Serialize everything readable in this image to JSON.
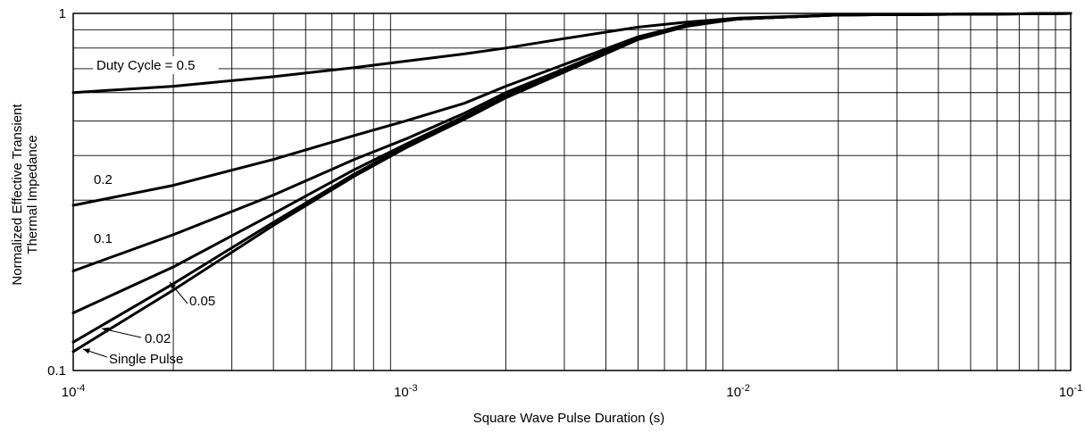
{
  "chart_data": {
    "type": "line",
    "title": "",
    "xlabel": "Square Wave Pulse Duration (s)",
    "ylabel": "Normalized Effective Transient Thermal Impedance",
    "ylabel_lines": [
      "Normalized Effective Transient",
      "Thermal Impedance"
    ],
    "x_scale": "log",
    "y_scale": "log",
    "xlim": [
      0.0001,
      0.1
    ],
    "ylim": [
      0.1,
      1
    ],
    "grid": true,
    "x_ticks": [
      {
        "base": "10",
        "exp": "-4"
      },
      {
        "base": "10",
        "exp": "-3"
      },
      {
        "base": "10",
        "exp": "-2"
      },
      {
        "base": "10",
        "exp": "-1"
      }
    ],
    "y_ticks": [
      "1",
      "0.1"
    ],
    "series": [
      {
        "name": "Duty Cycle = 0.5",
        "x": [
          0.0001,
          0.0002,
          0.0004,
          0.0007,
          0.001,
          0.0015,
          0.002,
          0.003,
          0.005,
          0.007,
          0.01,
          0.02,
          0.05,
          0.1
        ],
        "y": [
          0.6,
          0.625,
          0.665,
          0.705,
          0.735,
          0.77,
          0.8,
          0.85,
          0.915,
          0.945,
          0.97,
          0.99,
          0.995,
          1.0
        ]
      },
      {
        "name": "0.2",
        "x": [
          0.0001,
          0.0002,
          0.0004,
          0.0007,
          0.001,
          0.0015,
          0.002,
          0.003,
          0.005,
          0.007,
          0.01,
          0.02,
          0.05,
          0.1
        ],
        "y": [
          0.29,
          0.33,
          0.39,
          0.455,
          0.5,
          0.56,
          0.625,
          0.72,
          0.86,
          0.93,
          0.965,
          0.99,
          0.995,
          1.0
        ]
      },
      {
        "name": "0.1",
        "x": [
          0.0001,
          0.0002,
          0.0004,
          0.0007,
          0.001,
          0.0015,
          0.002,
          0.003,
          0.005,
          0.007,
          0.01,
          0.02,
          0.05,
          0.1
        ],
        "y": [
          0.19,
          0.24,
          0.31,
          0.39,
          0.445,
          0.525,
          0.6,
          0.7,
          0.855,
          0.925,
          0.965,
          0.99,
          0.995,
          1.0
        ]
      },
      {
        "name": "0.05",
        "x": [
          0.0001,
          0.0002,
          0.0004,
          0.0007,
          0.001,
          0.0015,
          0.002,
          0.003,
          0.005,
          0.007,
          0.01,
          0.02,
          0.05,
          0.1
        ],
        "y": [
          0.145,
          0.195,
          0.275,
          0.365,
          0.43,
          0.515,
          0.59,
          0.695,
          0.85,
          0.925,
          0.965,
          0.99,
          0.995,
          1.0
        ]
      },
      {
        "name": "0.02",
        "x": [
          0.0001,
          0.0002,
          0.0004,
          0.0007,
          0.001,
          0.0015,
          0.002,
          0.003,
          0.005,
          0.007,
          0.01,
          0.02,
          0.05,
          0.1
        ],
        "y": [
          0.12,
          0.175,
          0.26,
          0.355,
          0.425,
          0.51,
          0.585,
          0.69,
          0.85,
          0.925,
          0.965,
          0.99,
          0.995,
          1.0
        ]
      },
      {
        "name": "Single Pulse",
        "x": [
          0.0001,
          0.0002,
          0.0004,
          0.0007,
          0.001,
          0.0015,
          0.002,
          0.003,
          0.005,
          0.007,
          0.01,
          0.02,
          0.05,
          0.1
        ],
        "y": [
          0.113,
          0.168,
          0.255,
          0.35,
          0.42,
          0.505,
          0.58,
          0.685,
          0.845,
          0.92,
          0.965,
          0.99,
          0.995,
          1.0
        ]
      }
    ],
    "annotations": [
      {
        "text": "Duty Cycle = 0.5",
        "series": "Duty Cycle = 0.5"
      },
      {
        "text": "0.2",
        "series": "0.2"
      },
      {
        "text": "0.1",
        "series": "0.1"
      },
      {
        "text": "0.05",
        "series": "0.05"
      },
      {
        "text": "0.02",
        "series": "0.02"
      },
      {
        "text": "Single Pulse",
        "series": "Single Pulse"
      }
    ]
  }
}
